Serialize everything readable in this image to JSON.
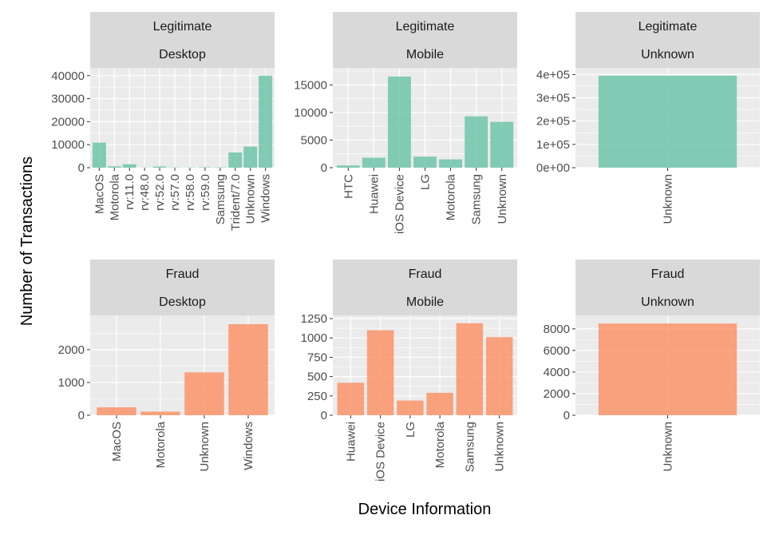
{
  "axis_titles": {
    "x": "Device Information",
    "y": "Number of Transactions"
  },
  "colors": {
    "legitimate": "#66C2A5",
    "fraud": "#FC8D62",
    "panel_bg": "#EBEBEB",
    "strip_bg": "#D9D9D9"
  },
  "chart_data": [
    {
      "type": "bar",
      "facet": [
        "Legitimate",
        "Desktop"
      ],
      "categories": [
        "MacOS",
        "Motorola",
        "rv:11.0",
        "rv:48.0",
        "rv:52.0",
        "rv:57.0",
        "rv:58.0",
        "rv:59.0",
        "Samsung",
        "Trident/7.0",
        "Unknown",
        "Windows"
      ],
      "values": [
        10900,
        600,
        1500,
        80,
        500,
        120,
        100,
        200,
        150,
        6600,
        9200,
        40000
      ],
      "ylim": [
        0,
        42000
      ],
      "yticks": [
        0,
        10000,
        20000,
        30000,
        40000
      ],
      "ytick_labels": [
        "0",
        "10000",
        "20000",
        "30000",
        "40000"
      ],
      "xlabel": "Device Information",
      "ylabel": "Number of Transactions"
    },
    {
      "type": "bar",
      "facet": [
        "Legitimate",
        "Mobile"
      ],
      "categories": [
        "HTC",
        "Huawei",
        "iOS Device",
        "LG",
        "Motorola",
        "Samsung",
        "Unknown"
      ],
      "values": [
        400,
        1800,
        16500,
        2000,
        1500,
        9300,
        8300
      ],
      "ylim": [
        0,
        17500
      ],
      "yticks": [
        0,
        5000,
        10000,
        15000
      ],
      "ytick_labels": [
        "0",
        "5000",
        "10000",
        "15000"
      ],
      "xlabel": "Device Information",
      "ylabel": "Number of Transactions"
    },
    {
      "type": "bar",
      "facet": [
        "Legitimate",
        "Unknown"
      ],
      "categories": [
        "Unknown"
      ],
      "values": [
        395000
      ],
      "ylim": [
        0,
        415000
      ],
      "yticks": [
        0,
        100000,
        200000,
        300000,
        400000
      ],
      "ytick_labels": [
        "0e+00",
        "1e+05",
        "2e+05",
        "3e+05",
        "4e+05"
      ],
      "xlabel": "Device Information",
      "ylabel": "Number of Transactions"
    },
    {
      "type": "bar",
      "facet": [
        "Fraud",
        "Desktop"
      ],
      "categories": [
        "MacOS",
        "Motorola",
        "Unknown",
        "Windows"
      ],
      "values": [
        240,
        110,
        1310,
        2780
      ],
      "ylim": [
        0,
        2950
      ],
      "yticks": [
        0,
        1000,
        2000
      ],
      "ytick_labels": [
        "0",
        "1000",
        "2000"
      ],
      "xlabel": "Device Information",
      "ylabel": "Number of Transactions"
    },
    {
      "type": "bar",
      "facet": [
        "Fraud",
        "Mobile"
      ],
      "categories": [
        "Huawei",
        "iOS Device",
        "LG",
        "Motorola",
        "Samsung",
        "Unknown"
      ],
      "values": [
        420,
        1100,
        190,
        290,
        1190,
        1010
      ],
      "ylim": [
        0,
        1250
      ],
      "yticks": [
        0,
        250,
        500,
        750,
        1000,
        1250
      ],
      "ytick_labels": [
        "0",
        "250",
        "500",
        "750",
        "1000",
        "1250"
      ],
      "xlabel": "Device Information",
      "ylabel": "Number of Transactions"
    },
    {
      "type": "bar",
      "facet": [
        "Fraud",
        "Unknown"
      ],
      "categories": [
        "Unknown"
      ],
      "values": [
        8500
      ],
      "ylim": [
        0,
        8950
      ],
      "yticks": [
        0,
        2000,
        4000,
        6000,
        8000
      ],
      "ytick_labels": [
        "0",
        "2000",
        "4000",
        "6000",
        "8000"
      ],
      "xlabel": "Device Information",
      "ylabel": "Number of Transactions"
    }
  ]
}
